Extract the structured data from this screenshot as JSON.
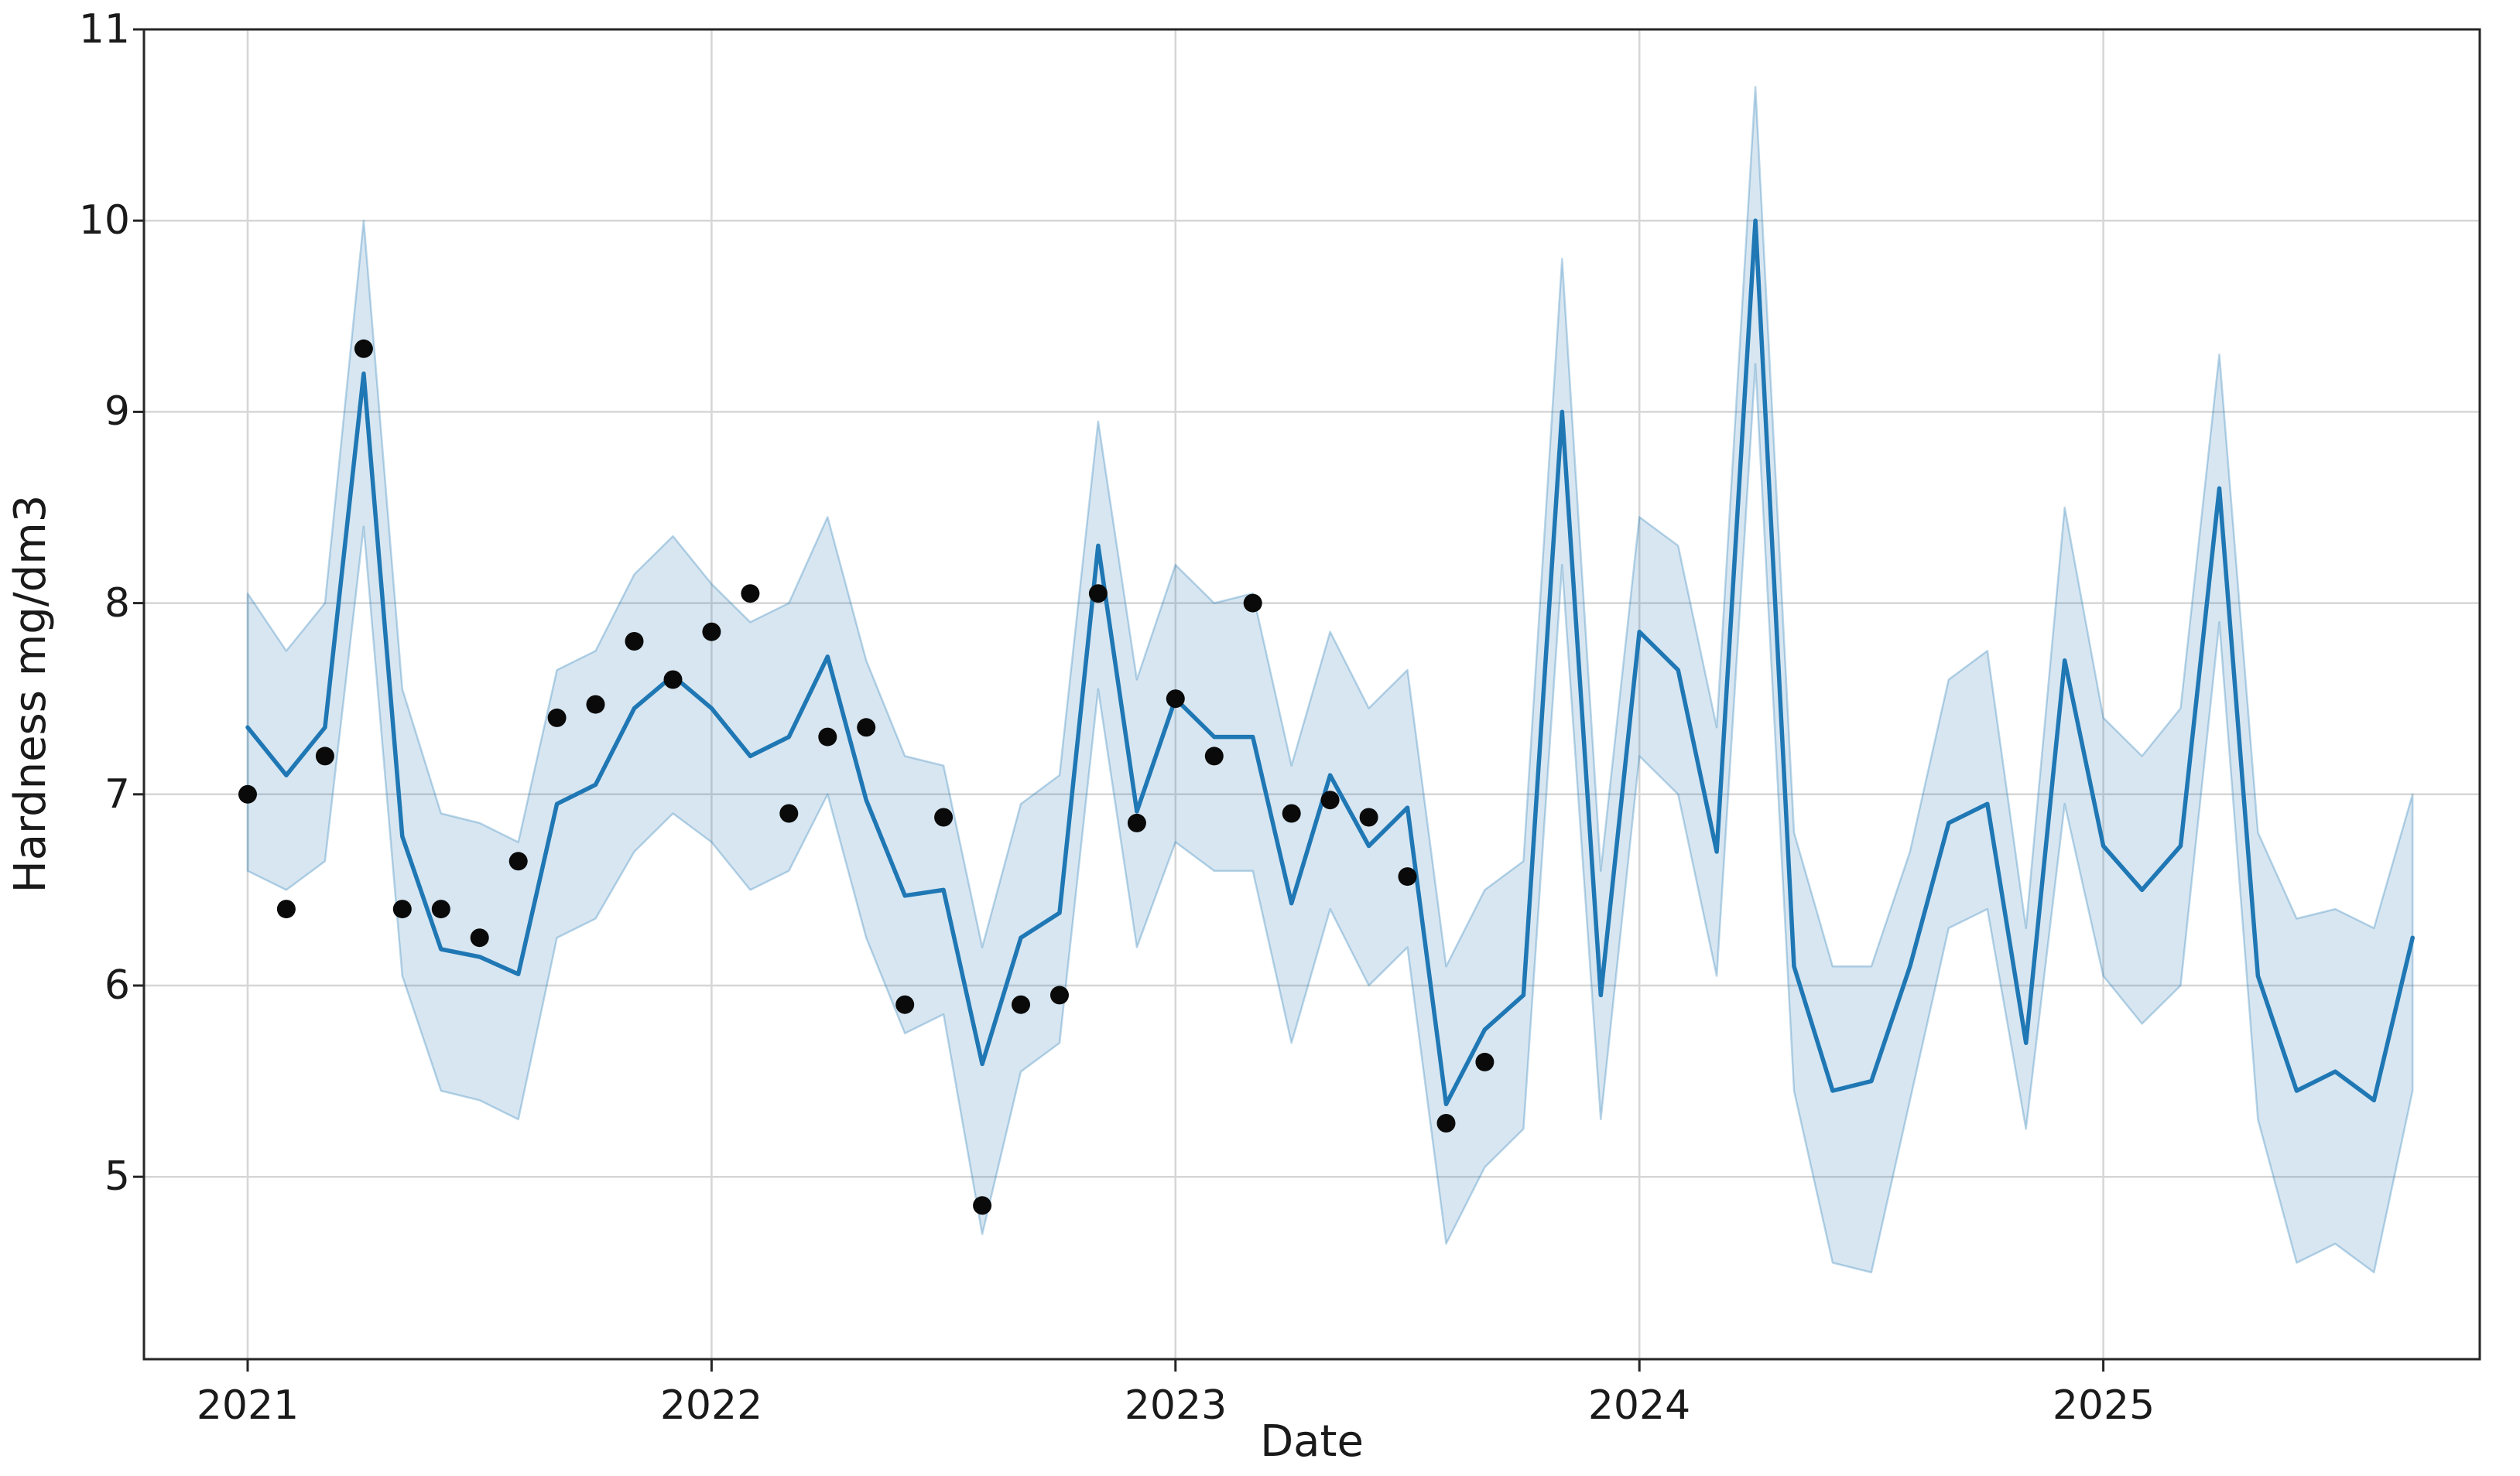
{
  "figure": {
    "background": "#ffffff",
    "plot_border_color": "#262626",
    "grid_color": "#d6d6d6"
  },
  "axes": {
    "x_title": "Date",
    "y_title": "Hardness mg/dm3",
    "y_tick_labels": [
      "11",
      "10",
      "9",
      "8",
      "7",
      "6",
      "5"
    ],
    "x_tick_labels": [
      "2021",
      "2022",
      "2023",
      "2024",
      "2025"
    ]
  },
  "chart_data": {
    "type": "line",
    "title": "",
    "xlabel": "Date",
    "ylabel": "Hardness mg/dm3",
    "grid": true,
    "legend": "none",
    "ylim": [
      4.05,
      11
    ],
    "y_ticks": [
      5,
      6,
      7,
      8,
      9,
      10,
      11
    ],
    "x_year_ticks": [
      "2021",
      "2022",
      "2023",
      "2024",
      "2025"
    ],
    "x_year_tick_month_index": [
      0,
      12,
      24,
      36,
      48
    ],
    "x": [
      "2021-01",
      "2021-02",
      "2021-03",
      "2021-04",
      "2021-05",
      "2021-06",
      "2021-07",
      "2021-08",
      "2021-09",
      "2021-10",
      "2021-11",
      "2021-12",
      "2022-01",
      "2022-02",
      "2022-03",
      "2022-04",
      "2022-05",
      "2022-06",
      "2022-07",
      "2022-08",
      "2022-09",
      "2022-10",
      "2022-11",
      "2022-12",
      "2023-01",
      "2023-02",
      "2023-03",
      "2023-04",
      "2023-05",
      "2023-06",
      "2023-07",
      "2023-08",
      "2023-09",
      "2023-10",
      "2023-11",
      "2023-12",
      "2024-01",
      "2024-02",
      "2024-03",
      "2024-04",
      "2024-05",
      "2024-06",
      "2024-07",
      "2024-08",
      "2024-09",
      "2024-10",
      "2024-11",
      "2024-12",
      "2025-01",
      "2025-02",
      "2025-03",
      "2025-04",
      "2025-05",
      "2025-06",
      "2025-07",
      "2025-08",
      "2025-09"
    ],
    "series": [
      {
        "name": "predicted-mean",
        "type": "line",
        "color": "#1f77b4",
        "values": [
          7.35,
          7.1,
          7.35,
          9.2,
          6.78,
          6.19,
          6.15,
          6.06,
          6.95,
          7.05,
          7.45,
          7.62,
          7.45,
          7.2,
          7.3,
          7.72,
          6.97,
          6.47,
          6.5,
          5.59,
          6.25,
          6.38,
          8.3,
          6.91,
          7.5,
          7.3,
          7.3,
          6.43,
          7.1,
          6.73,
          6.93,
          5.38,
          5.77,
          5.95,
          9.0,
          5.95,
          7.85,
          7.65,
          6.7,
          10.0,
          6.1,
          5.45,
          5.5,
          6.1,
          6.85,
          6.95,
          5.7,
          7.7,
          6.73,
          6.5,
          6.73,
          8.6,
          6.05,
          5.45,
          5.55,
          5.4,
          6.25
        ]
      },
      {
        "name": "confidence-band-upper",
        "type": "band-edge",
        "color": "rgba(31,119,180,0.18)",
        "values": [
          8.05,
          7.75,
          8.0,
          10.0,
          7.55,
          6.9,
          6.85,
          6.75,
          7.65,
          7.75,
          8.15,
          8.35,
          8.1,
          7.9,
          8.0,
          8.45,
          7.7,
          7.2,
          7.15,
          6.2,
          6.95,
          7.1,
          8.95,
          7.6,
          8.2,
          8.0,
          8.05,
          7.15,
          7.85,
          7.45,
          7.65,
          6.1,
          6.5,
          6.65,
          9.8,
          6.6,
          8.45,
          8.3,
          7.35,
          10.7,
          6.8,
          6.1,
          6.1,
          6.7,
          7.6,
          7.75,
          6.3,
          8.5,
          7.4,
          7.2,
          7.45,
          9.3,
          6.8,
          6.35,
          6.4,
          6.3,
          7.0
        ]
      },
      {
        "name": "confidence-band-lower",
        "type": "band-edge",
        "color": "rgba(31,119,180,0.18)",
        "values": [
          6.6,
          6.5,
          6.65,
          8.4,
          6.05,
          5.45,
          5.4,
          5.3,
          6.25,
          6.35,
          6.7,
          6.9,
          6.75,
          6.5,
          6.6,
          7.0,
          6.25,
          5.75,
          5.85,
          4.7,
          5.55,
          5.7,
          7.55,
          6.2,
          6.75,
          6.6,
          6.6,
          5.7,
          6.4,
          6.0,
          6.2,
          4.65,
          5.05,
          5.25,
          8.2,
          5.3,
          7.2,
          7.0,
          6.05,
          9.25,
          5.45,
          4.55,
          4.5,
          5.4,
          6.3,
          6.4,
          5.25,
          6.95,
          6.05,
          5.8,
          6.0,
          7.9,
          5.3,
          4.55,
          4.65,
          4.5,
          5.45
        ]
      },
      {
        "name": "observed-hardness",
        "type": "scatter",
        "color": "#0a0a0a",
        "values": [
          7.0,
          6.4,
          7.2,
          9.33,
          6.4,
          6.4,
          6.25,
          6.65,
          7.4,
          7.47,
          7.8,
          7.6,
          7.85,
          8.05,
          6.9,
          7.3,
          7.35,
          5.9,
          6.88,
          4.85,
          5.9,
          5.95,
          8.05,
          6.85,
          7.5,
          7.2,
          8.0,
          6.9,
          6.97,
          6.88,
          6.57,
          5.28,
          5.6
        ]
      }
    ]
  }
}
